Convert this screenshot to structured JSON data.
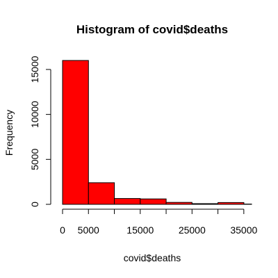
{
  "chart_data": {
    "type": "bar",
    "subtype": "histogram",
    "title": "Histogram of covid$deaths",
    "xlabel": "covid$deaths",
    "ylabel": "Frequency",
    "bins": [
      {
        "start": 0,
        "end": 5000,
        "count": 16000
      },
      {
        "start": 5000,
        "end": 10000,
        "count": 2400
      },
      {
        "start": 10000,
        "end": 15000,
        "count": 650
      },
      {
        "start": 15000,
        "end": 20000,
        "count": 600
      },
      {
        "start": 20000,
        "end": 25000,
        "count": 220
      },
      {
        "start": 25000,
        "end": 30000,
        "count": 80
      },
      {
        "start": 30000,
        "end": 35000,
        "count": 200
      },
      {
        "start": 35000,
        "end": 36500,
        "count": 30
      }
    ],
    "x_ticks": [
      0,
      5000,
      10000,
      15000,
      20000,
      25000,
      30000,
      35000
    ],
    "x_tick_labels": [
      "0",
      "5000",
      "",
      "15000",
      "",
      "25000",
      "",
      "35000"
    ],
    "y_ticks": [
      0,
      5000,
      10000,
      15000
    ],
    "y_tick_labels": [
      "0",
      "5000",
      "10000",
      "15000"
    ],
    "xlim": [
      0,
      36500
    ],
    "ylim": [
      0,
      16000
    ],
    "bar_color": "#ff0000",
    "grid": false,
    "legend": "none"
  }
}
